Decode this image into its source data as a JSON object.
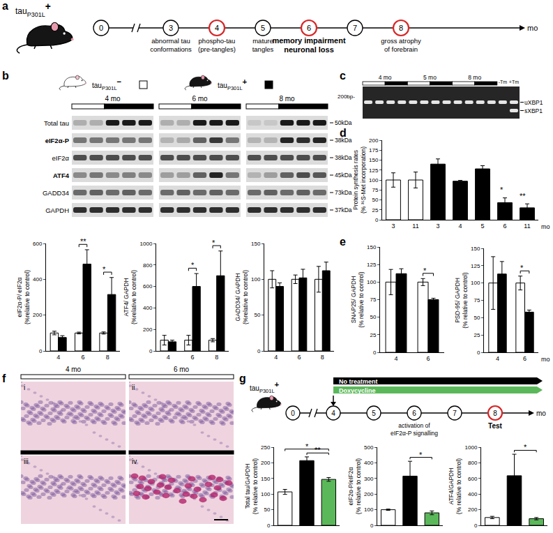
{
  "figure": {
    "a": {
      "letter": "a",
      "subject": {
        "base": "tau",
        "sub": "P301L",
        "sign": "+"
      },
      "timepoints": [
        "0",
        "3",
        "4",
        "5",
        "6",
        "7",
        "8"
      ],
      "highlight": [
        "4",
        "6",
        "8"
      ],
      "break_after": "0",
      "unit": "mo",
      "events": [
        {
          "at": "3",
          "lines": [
            "abnormal tau",
            "conformations"
          ]
        },
        {
          "at": "4",
          "lines": [
            "phospho-tau",
            "(pre-tangles)"
          ]
        },
        {
          "at": "5",
          "lines": [
            "mature",
            "tangles"
          ]
        },
        {
          "at": "6",
          "lines": [
            "memory impairment",
            "neuronal loss"
          ],
          "emphasis": true
        },
        {
          "at": "8",
          "lines": [
            "gross atrophy",
            "of forebrain"
          ]
        }
      ]
    },
    "b": {
      "letter": "b",
      "legend": [
        {
          "base": "tau",
          "sub": "P301L",
          "sign": "−",
          "color": "#ffffff"
        },
        {
          "base": "tau",
          "sub": "P301L",
          "sign": "+",
          "color": "#000000"
        }
      ],
      "groups": [
        "4 mo",
        "6 mo",
        "8 mo"
      ],
      "rows": [
        {
          "label": "Total tau",
          "size": "50kDa"
        },
        {
          "label": "eIF2α-P",
          "size": "38kDa",
          "bold": true
        },
        {
          "label": "eIF2α",
          "size": "38kDa"
        },
        {
          "label": "ATF4",
          "size": "45kDa",
          "bold": true
        },
        {
          "label": "GADD34",
          "size": "73kDa"
        },
        {
          "label": "GAPDH",
          "size": "37kDa"
        }
      ]
    },
    "c": {
      "letter": "c",
      "groups": [
        "4 mo",
        "5 mo",
        "8 mo"
      ],
      "marker": "200bp-",
      "controls": [
        "-Tm",
        "+Tm"
      ],
      "bands": [
        "uXBP1",
        "sXBP1"
      ]
    },
    "d": {
      "letter": "d"
    },
    "e": {
      "letter": "e"
    },
    "f": {
      "letter": "f",
      "columns": [
        "4 mo",
        "6 mo"
      ],
      "panels": [
        "i",
        "ii",
        "iii",
        "iv"
      ]
    },
    "g": {
      "letter": "g",
      "subject": {
        "base": "tau",
        "sub": "P301L",
        "sign": "+"
      },
      "timepoints": [
        "0",
        "4",
        "5",
        "6",
        "7",
        "8"
      ],
      "highlight": [
        "8"
      ],
      "break_after": "0",
      "unit": "mo",
      "start": "4",
      "treatments": [
        {
          "text": "No treatment",
          "color": "#000000"
        },
        {
          "text": "Doxycycline",
          "color": "#5bb85a"
        }
      ],
      "events": [
        {
          "at": "6",
          "lines": [
            "activation of",
            "eIF2α-P signalling"
          ]
        }
      ],
      "test": {
        "at": "8",
        "text": "Test"
      }
    }
  },
  "chart_data": [
    {
      "type": "bar",
      "categories": [
        "4",
        "6",
        "8"
      ],
      "series": [
        {
          "color": "#ffffff",
          "values": [
            100,
            100,
            100
          ],
          "errors": [
            10,
            5,
            6
          ]
        },
        {
          "color": "#000000",
          "values": [
            75,
            485,
            315
          ],
          "errors": [
            10,
            80,
            95
          ]
        }
      ],
      "y_title": [
        "eIF2α-P/ eIF2α",
        "(%relative to control)"
      ],
      "ylim": [
        0,
        600
      ],
      "yticks": [
        0,
        200,
        400,
        600
      ],
      "annotations": [
        {
          "text": "**",
          "category": 1
        },
        {
          "text": "*",
          "category": 2
        }
      ]
    },
    {
      "type": "bar",
      "categories": [
        "4",
        "6",
        "8"
      ],
      "series": [
        {
          "color": "#ffffff",
          "values": [
            100,
            100,
            100
          ],
          "errors": [
            45,
            45,
            15
          ]
        },
        {
          "color": "#000000",
          "values": [
            85,
            600,
            700
          ],
          "errors": [
            15,
            120,
            230
          ]
        }
      ],
      "y_title": [
        "ATF4/ GAPDH",
        "(%relative to control)"
      ],
      "ylim": [
        0,
        1000
      ],
      "yticks": [
        0,
        200,
        400,
        600,
        800,
        1000
      ],
      "annotations": [
        {
          "text": "*",
          "category": 1
        },
        {
          "text": "*",
          "category": 2
        }
      ]
    },
    {
      "type": "bar",
      "categories": [
        "4",
        "6",
        "8"
      ],
      "series": [
        {
          "color": "#ffffff",
          "values": [
            100,
            100,
            100
          ],
          "errors": [
            12,
            6,
            18
          ]
        },
        {
          "color": "#000000",
          "values": [
            90,
            102,
            112
          ],
          "errors": [
            5,
            12,
            12
          ]
        }
      ],
      "y_title": [
        "GADD34/ GAPDH",
        "(%relative to control)"
      ],
      "ylim": [
        0,
        150
      ],
      "yticks": [
        0,
        50,
        100,
        150
      ]
    },
    {
      "type": "bar",
      "categories": [
        "3",
        "11",
        "3",
        "4",
        "5",
        "6",
        "11"
      ],
      "values": [
        100,
        100,
        140,
        97,
        128,
        43,
        30
      ],
      "errors": [
        18,
        20,
        13,
        2,
        8,
        12,
        10
      ],
      "colors": [
        "#ffffff",
        "#ffffff",
        "#000000",
        "#000000",
        "#000000",
        "#000000",
        "#000000"
      ],
      "y_title": [
        "Protein synthesis rates",
        "(% ³⁵S-Met incorporation)"
      ],
      "x_title": "mo",
      "ylim": [
        0,
        200
      ],
      "yticks": [
        0,
        25,
        50,
        75,
        100,
        125,
        150,
        175,
        200
      ],
      "annotations": [
        {
          "text": "*",
          "at": 5
        },
        {
          "text": "**",
          "at": 6
        }
      ]
    },
    {
      "type": "bar",
      "categories": [
        "4",
        "6"
      ],
      "series": [
        {
          "color": "#ffffff",
          "values": [
            100,
            100
          ],
          "errors": [
            18,
            5
          ]
        },
        {
          "color": "#000000",
          "values": [
            112,
            75
          ],
          "errors": [
            7,
            2
          ]
        }
      ],
      "y_title": [
        "SNAP25/ GAPDH",
        "(% relative to control)"
      ],
      "ylim": [
        0,
        150
      ],
      "yticks": [
        0,
        25,
        50,
        75,
        100,
        125,
        150
      ],
      "annotations": [
        {
          "text": "*",
          "category": 1
        }
      ]
    },
    {
      "type": "bar",
      "categories": [
        "4",
        "6"
      ],
      "series": [
        {
          "color": "#ffffff",
          "values": [
            100,
            100
          ],
          "errors": [
            38,
            10
          ]
        },
        {
          "color": "#000000",
          "values": [
            113,
            58
          ],
          "errors": [
            18,
            3
          ]
        }
      ],
      "y_title": [
        "PSD-95/ GAPDH",
        "(% relative to control)"
      ],
      "x_title": "mo",
      "ylim": [
        0,
        150
      ],
      "yticks": [
        0,
        25,
        50,
        75,
        100,
        125,
        150
      ],
      "annotations": [
        {
          "text": "*",
          "category": 1
        }
      ]
    },
    {
      "type": "bar",
      "categories": [
        null,
        null,
        null
      ],
      "tick_labels": "y",
      "values": [
        107,
        207,
        147
      ],
      "errors": [
        8,
        12,
        6
      ],
      "colors": [
        "#ffffff",
        "#000000",
        "#5bb85a"
      ],
      "y_title": [
        "Total tau/GAPDH",
        "(% relative to control)"
      ],
      "ylim": [
        0,
        250
      ],
      "yticks": [
        0,
        50,
        100,
        150,
        200,
        250
      ],
      "annotations": [
        {
          "text": "**",
          "between": [
            1,
            2
          ]
        },
        {
          "text": "*",
          "between": [
            0,
            2
          ]
        }
      ]
    },
    {
      "type": "bar",
      "categories": [
        null,
        null,
        null
      ],
      "tick_labels": "y",
      "values": [
        100,
        315,
        80
      ],
      "errors": [
        4,
        95,
        12
      ],
      "colors": [
        "#ffffff",
        "#000000",
        "#5bb85a"
      ],
      "y_title": [
        "eIF2α-P/eIF2α",
        "(% relative to control)"
      ],
      "ylim": [
        0,
        500
      ],
      "yticks": [
        0,
        100,
        200,
        300,
        400,
        500
      ],
      "annotations": [
        {
          "text": "*",
          "between": [
            1,
            2
          ]
        }
      ]
    },
    {
      "type": "bar",
      "categories": [
        null,
        null,
        null
      ],
      "tick_labels": "y",
      "values": [
        100,
        635,
        85
      ],
      "errors": [
        15,
        275,
        15
      ],
      "colors": [
        "#ffffff",
        "#000000",
        "#5bb85a"
      ],
      "y_title": [
        "ATF4/GAPDH",
        "(% relative to control)"
      ],
      "ylim": [
        0,
        1000
      ],
      "yticks": [
        0,
        200,
        400,
        600,
        800,
        1000
      ],
      "annotations": [
        {
          "text": "*",
          "between": [
            1,
            2
          ]
        }
      ]
    }
  ]
}
